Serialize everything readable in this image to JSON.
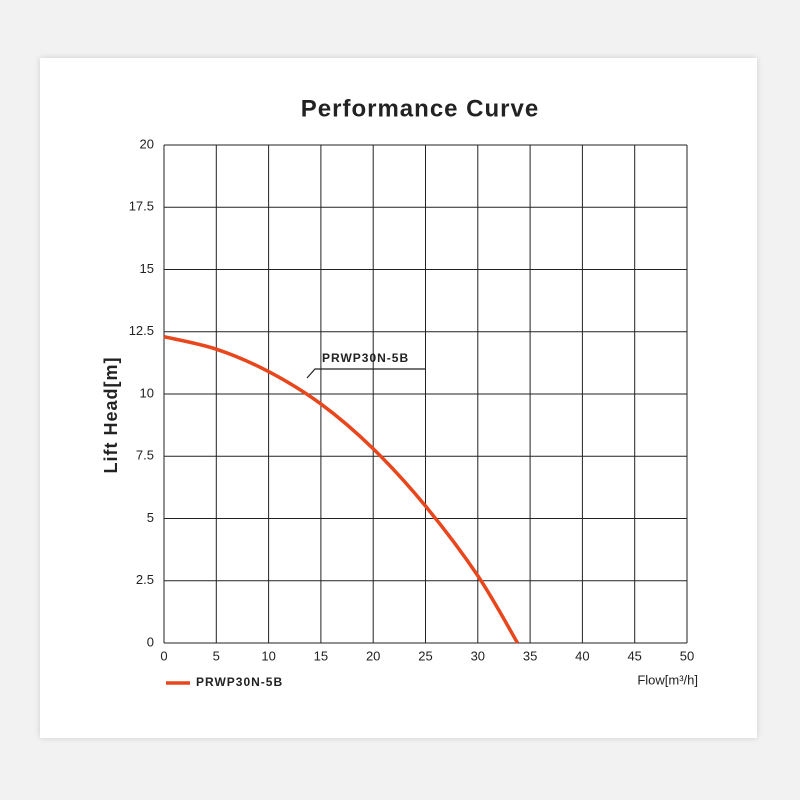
{
  "chart_data": {
    "type": "line",
    "title": "Performance Curve",
    "x_label": "Flow[m³/h]",
    "y_label": "Lift Head[m]",
    "annotation": "PRWP30N-5B",
    "x": [
      0,
      5,
      10,
      15,
      20,
      25,
      30,
      33.8
    ],
    "series": [
      {
        "name": "PRWP30N-5B",
        "color": "#e8461c",
        "values": [
          12.3,
          11.8,
          10.9,
          9.6,
          7.8,
          5.5,
          2.7,
          0
        ]
      }
    ],
    "xlim": [
      0,
      50
    ],
    "xticks": [
      0,
      5,
      10,
      15,
      20,
      25,
      30,
      35,
      40,
      45,
      50
    ],
    "ylim": [
      0,
      20
    ],
    "yticks": [
      0,
      2.5,
      5,
      7.5,
      10,
      12.5,
      15,
      17.5,
      20
    ],
    "grid": true,
    "legend": "bottom-left"
  }
}
